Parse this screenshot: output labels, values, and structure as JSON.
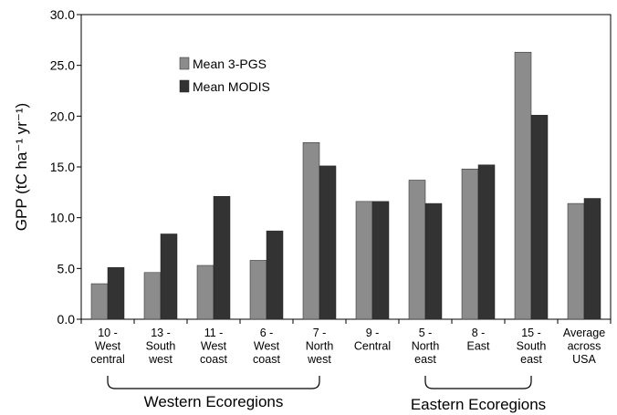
{
  "chart_data": {
    "type": "bar",
    "ylabel": "GPP (tC ha⁻¹ yr⁻¹)",
    "ylim": [
      0,
      30
    ],
    "yticks": [
      "0.0",
      "5.0",
      "10.0",
      "15.0",
      "20.0",
      "25.0",
      "30.0"
    ],
    "grid": false,
    "legend_position": "top-left",
    "categories": [
      [
        "10 -",
        "West",
        "central"
      ],
      [
        "13 -",
        "South",
        "west"
      ],
      [
        "11 -",
        "West",
        "coast"
      ],
      [
        "6 -",
        "West",
        "coast"
      ],
      [
        "7 -",
        "North",
        "west"
      ],
      [
        "9 -",
        "Central"
      ],
      [
        "5 -",
        "North",
        "east"
      ],
      [
        "8 -",
        "East"
      ],
      [
        "15 -",
        "South",
        "east"
      ],
      [
        "Average",
        "across",
        "USA"
      ]
    ],
    "series": [
      {
        "name": "Mean 3-PGS",
        "color": "#8c8c8c",
        "values": [
          3.5,
          4.6,
          5.3,
          5.8,
          17.4,
          11.6,
          13.7,
          14.8,
          26.3,
          11.4
        ]
      },
      {
        "name": "Mean MODIS",
        "color": "#333333",
        "values": [
          5.1,
          8.4,
          12.1,
          8.7,
          15.1,
          11.6,
          11.4,
          15.2,
          20.1,
          11.9
        ]
      }
    ],
    "groups": [
      {
        "label": "Western Ecoregions",
        "from": 0,
        "to": 4
      },
      {
        "label": "Eastern Ecoregions",
        "from": 6,
        "to": 8
      }
    ]
  }
}
